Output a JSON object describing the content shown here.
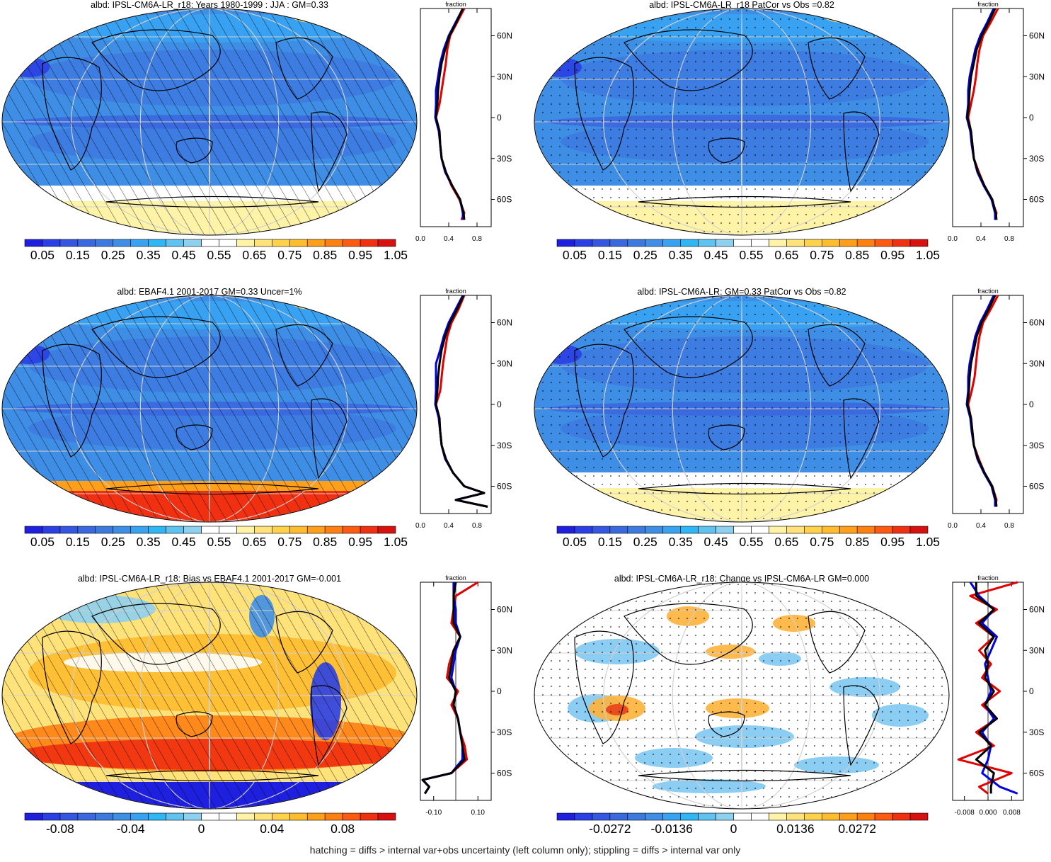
{
  "footer": "hatching = diffs > internal var+obs uncertainty (left column only); stippling = diffs > internal var only",
  "colorbars": {
    "albedo": {
      "colors": [
        "#1f1fe0",
        "#2a3fe6",
        "#3556e0",
        "#3a68de",
        "#3d7ae0",
        "#3f8ee6",
        "#37a3f2",
        "#2fb7f5",
        "#5ec3f0",
        "#8ed0ef",
        "#ffffff",
        "#ffffff",
        "#fff3a8",
        "#ffe27a",
        "#ffd24a",
        "#ffbd2e",
        "#ff9f1a",
        "#ff7f10",
        "#ff5a10",
        "#f03010",
        "#d81010"
      ],
      "labels": [
        "0.05",
        "0.15",
        "0.25",
        "0.35",
        "0.45",
        "0.55",
        "0.65",
        "0.75",
        "0.85",
        "0.95",
        "1.05"
      ]
    },
    "bias": {
      "colors": [
        "#1f1fe0",
        "#2a3fe6",
        "#3556e0",
        "#3a68de",
        "#3d7ae0",
        "#3f8ee6",
        "#37a3f2",
        "#2fb7f5",
        "#5ec3f0",
        "#8ed0ef",
        "#ffffff",
        "#ffffff",
        "#fff3a8",
        "#ffe27a",
        "#ffd24a",
        "#ffbd2e",
        "#ff9f1a",
        "#ff7f10",
        "#ff5a10",
        "#f03010",
        "#d81010"
      ],
      "labels": [
        "-0.08",
        "-0.04",
        "0",
        "0.04",
        "0.08"
      ],
      "label_slots": [
        2,
        6,
        10,
        14,
        18
      ]
    },
    "change": {
      "colors": [
        "#1f1fe0",
        "#2a3fe6",
        "#3556e0",
        "#3a68de",
        "#3d7ae0",
        "#3f8ee6",
        "#37a3f2",
        "#2fb7f5",
        "#5ec3f0",
        "#8ed0ef",
        "#ffffff",
        "#ffffff",
        "#fff3a8",
        "#ffe27a",
        "#ffd24a",
        "#ffbd2e",
        "#ff9f1a",
        "#ff7f10",
        "#ff5a10",
        "#f03010",
        "#d81010"
      ],
      "labels": [
        "-0.0272",
        "-0.0136",
        "0",
        "0.0136",
        "0.0272"
      ],
      "label_slots": [
        3,
        6.5,
        10,
        13.5,
        17
      ]
    }
  },
  "zonal_axis": {
    "header": "fraction",
    "lat_labels": [
      "60N",
      "30N",
      "0",
      "30S",
      "60S"
    ],
    "lat_values": [
      60,
      30,
      0,
      -30,
      -60
    ]
  },
  "chart_data": [
    {
      "type": "map+line",
      "title": "albd: IPSL-CM6A-LR_r18: Years 1980-1999 : JJA : GM=0.33",
      "overlay": "hatching",
      "colorbar": "albedo",
      "xticks": [
        "0.0",
        "0.4",
        "0.8"
      ],
      "xlim": [
        0,
        1
      ],
      "lat": [
        80,
        70,
        60,
        50,
        40,
        30,
        20,
        10,
        0,
        -10,
        -20,
        -30,
        -40,
        -50,
        -60,
        -70,
        -75
      ],
      "series": [
        {
          "color": "#e00000",
          "values": [
            0.62,
            0.52,
            0.42,
            0.38,
            0.36,
            0.33,
            0.3,
            0.27,
            0.22,
            0.27,
            0.28,
            0.3,
            0.36,
            0.44,
            0.55,
            0.62,
            0.58
          ]
        },
        {
          "color": "#0000e0",
          "values": [
            0.6,
            0.5,
            0.4,
            0.33,
            0.28,
            0.25,
            0.22,
            0.22,
            0.21,
            0.26,
            0.28,
            0.3,
            0.35,
            0.45,
            0.56,
            0.6,
            0.6
          ]
        },
        {
          "color": "#000000",
          "values": [
            0.6,
            0.51,
            0.41,
            0.35,
            0.3,
            0.27,
            0.25,
            0.24,
            0.22,
            0.27,
            0.28,
            0.3,
            0.36,
            0.45,
            0.56,
            0.61,
            0.62
          ]
        }
      ]
    },
    {
      "type": "map+line",
      "title": "albd: IPSL-CM6A-LR_r18 PatCor vs Obs =0.82",
      "overlay": "stippling",
      "colorbar": "albedo",
      "xticks": [
        "0.0",
        "0.4",
        "0.8"
      ],
      "xlim": [
        0,
        1
      ],
      "lat": [
        80,
        70,
        60,
        50,
        40,
        30,
        20,
        10,
        0,
        -10,
        -20,
        -30,
        -40,
        -50,
        -60,
        -70,
        -75
      ],
      "series": [
        {
          "color": "#e00000",
          "values": [
            0.64,
            0.54,
            0.43,
            0.38,
            0.35,
            0.33,
            0.3,
            0.26,
            0.22,
            0.26,
            0.28,
            0.3,
            0.37,
            0.45,
            0.55,
            0.62,
            0.6
          ]
        },
        {
          "color": "#0000e0",
          "values": [
            0.58,
            0.49,
            0.39,
            0.32,
            0.28,
            0.24,
            0.22,
            0.22,
            0.2,
            0.25,
            0.27,
            0.3,
            0.35,
            0.44,
            0.55,
            0.6,
            0.6
          ]
        },
        {
          "color": "#000000",
          "values": [
            0.6,
            0.51,
            0.41,
            0.34,
            0.3,
            0.26,
            0.24,
            0.23,
            0.21,
            0.26,
            0.28,
            0.3,
            0.36,
            0.45,
            0.56,
            0.61,
            0.62
          ]
        }
      ]
    },
    {
      "type": "map+line",
      "title": "albd: EBAF4.1 2001-2017 GM=0.33 Uncer=1%",
      "overlay": "hatching",
      "colorbar": "albedo",
      "xticks": [
        "0.0",
        "0.4",
        "0.8"
      ],
      "xlim": [
        0,
        1
      ],
      "lat": [
        80,
        70,
        60,
        50,
        40,
        30,
        20,
        10,
        0,
        -10,
        -20,
        -30,
        -40,
        -50,
        -60,
        -65,
        -70,
        -75
      ],
      "series": [
        {
          "color": "#e00000",
          "values": [
            0.62,
            0.54,
            0.44,
            0.38,
            0.35,
            0.32,
            0.3,
            0.28,
            0.22,
            0.26,
            0.28,
            0.3,
            0.36,
            0.46,
            0.62,
            0.9,
            0.5,
            0.95
          ]
        },
        {
          "color": "#0000e0",
          "values": [
            0.6,
            0.5,
            0.4,
            0.33,
            0.28,
            0.22,
            0.22,
            0.22,
            0.21,
            0.26,
            0.28,
            0.3,
            0.35,
            0.46,
            0.62,
            0.9,
            0.5,
            0.95
          ]
        },
        {
          "color": "#000000",
          "values": [
            0.61,
            0.52,
            0.42,
            0.35,
            0.3,
            0.27,
            0.25,
            0.24,
            0.22,
            0.27,
            0.28,
            0.3,
            0.36,
            0.46,
            0.62,
            0.9,
            0.5,
            0.95
          ]
        }
      ]
    },
    {
      "type": "map+line",
      "title": "albd: IPSL-CM6A-LR: GM=0.33 PatCor vs Obs =0.82",
      "overlay": "stippling",
      "colorbar": "albedo",
      "xticks": [
        "0.0",
        "0.4",
        "0.8"
      ],
      "xlim": [
        0,
        1
      ],
      "lat": [
        80,
        70,
        60,
        50,
        40,
        30,
        20,
        10,
        0,
        -10,
        -20,
        -30,
        -40,
        -50,
        -60,
        -70,
        -75
      ],
      "series": [
        {
          "color": "#e00000",
          "values": [
            0.64,
            0.54,
            0.43,
            0.38,
            0.35,
            0.33,
            0.31,
            0.27,
            0.22,
            0.26,
            0.28,
            0.3,
            0.37,
            0.45,
            0.56,
            0.62,
            0.6
          ]
        },
        {
          "color": "#0000e0",
          "values": [
            0.58,
            0.49,
            0.39,
            0.32,
            0.28,
            0.24,
            0.22,
            0.22,
            0.2,
            0.25,
            0.27,
            0.3,
            0.35,
            0.44,
            0.55,
            0.6,
            0.6
          ]
        },
        {
          "color": "#000000",
          "values": [
            0.6,
            0.51,
            0.41,
            0.34,
            0.3,
            0.26,
            0.24,
            0.23,
            0.21,
            0.26,
            0.28,
            0.3,
            0.36,
            0.45,
            0.56,
            0.61,
            0.62
          ]
        }
      ]
    },
    {
      "type": "map+line",
      "title": "albd: IPSL-CM6A-LR_r18: Bias vs EBAF4.1 2001-2017 GM=-0.001",
      "overlay": "hatching",
      "colorbar": "bias",
      "xticks": [
        "-0.10",
        "0.10"
      ],
      "xlim": [
        -0.16,
        0.16
      ],
      "zero_line": 0,
      "lat": [
        80,
        70,
        60,
        50,
        40,
        30,
        20,
        10,
        0,
        -10,
        -20,
        -30,
        -40,
        -50,
        -60,
        -65,
        -70,
        -75
      ],
      "series": [
        {
          "color": "#e00000",
          "values": [
            0.1,
            0.0,
            -0.01,
            -0.02,
            0.02,
            -0.01,
            -0.03,
            -0.04,
            0.01,
            -0.02,
            0.01,
            0.02,
            0.04,
            0.05,
            -0.02,
            -0.15,
            -0.12,
            -0.14
          ]
        },
        {
          "color": "#0000e0",
          "values": [
            -0.01,
            -0.01,
            0.0,
            0.0,
            0.02,
            0.0,
            -0.01,
            -0.02,
            0.0,
            -0.01,
            0.01,
            0.02,
            0.03,
            0.03,
            -0.02,
            -0.15,
            -0.12,
            -0.14
          ]
        },
        {
          "color": "#000000",
          "values": [
            0.0,
            -0.01,
            -0.01,
            -0.01,
            0.02,
            -0.01,
            -0.02,
            -0.03,
            0.0,
            -0.01,
            0.01,
            0.02,
            0.03,
            0.04,
            -0.02,
            -0.15,
            -0.12,
            -0.14
          ]
        }
      ]
    },
    {
      "type": "map+line",
      "title": "albd: IPSL-CM6A-LR_r18: Change vs IPSL-CM6A-LR GM=0.000",
      "overlay": "stippling",
      "colorbar": "change",
      "xticks": [
        "-0.008",
        "0.000",
        "0.008"
      ],
      "xlim": [
        -0.012,
        0.012
      ],
      "zero_line": 0,
      "lat": [
        80,
        70,
        60,
        50,
        40,
        30,
        20,
        10,
        0,
        -10,
        -20,
        -30,
        -40,
        -50,
        -60,
        -70,
        -75
      ],
      "series": [
        {
          "color": "#e00000",
          "values": [
            0.01,
            -0.006,
            0.003,
            -0.004,
            0.002,
            -0.003,
            0.001,
            -0.002,
            0.004,
            -0.002,
            0.003,
            -0.004,
            0.002,
            -0.01,
            0.008,
            -0.003,
            0.0
          ]
        },
        {
          "color": "#0000e0",
          "values": [
            -0.006,
            -0.003,
            0.002,
            -0.002,
            0.003,
            0.001,
            -0.001,
            0.0,
            0.001,
            -0.001,
            0.002,
            -0.002,
            0.001,
            0.0,
            -0.002,
            0.004,
            0.01
          ]
        },
        {
          "color": "#000000",
          "values": [
            -0.004,
            -0.004,
            0.002,
            -0.003,
            0.002,
            -0.001,
            0.0,
            -0.001,
            0.002,
            -0.001,
            0.003,
            -0.003,
            0.001,
            -0.004,
            0.002,
            0.001,
            0.001
          ]
        }
      ]
    }
  ]
}
